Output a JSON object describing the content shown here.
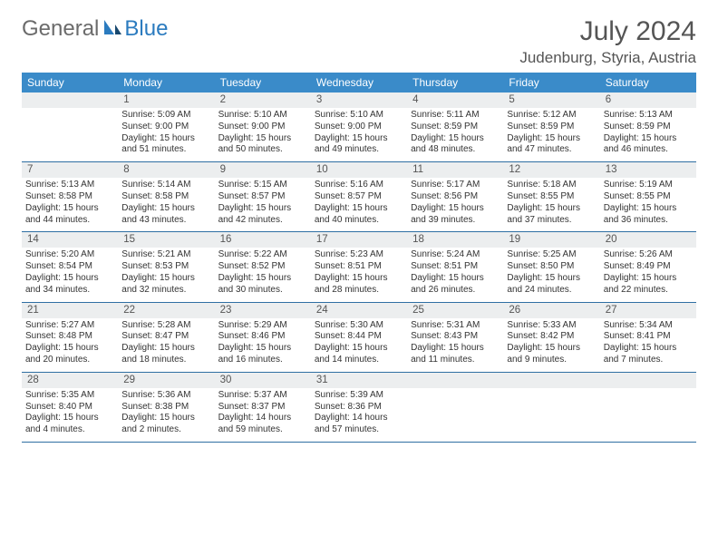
{
  "brand": {
    "part1": "General",
    "part2": "Blue"
  },
  "header": {
    "title": "July 2024",
    "location": "Judenburg, Styria, Austria"
  },
  "colors": {
    "header_bg": "#3a8bc9",
    "header_text": "#ffffff",
    "daynum_bg": "#eceeef",
    "row_border": "#2f6fa3",
    "title_color": "#555555",
    "logo_gray": "#6b6b6b",
    "logo_blue": "#2b7bbf"
  },
  "weekdays": [
    "Sunday",
    "Monday",
    "Tuesday",
    "Wednesday",
    "Thursday",
    "Friday",
    "Saturday"
  ],
  "layout": {
    "first_weekday_index": 1,
    "days_in_month": 31
  },
  "days": {
    "1": {
      "sunrise": "5:09 AM",
      "sunset": "9:00 PM",
      "daylight": "15 hours and 51 minutes."
    },
    "2": {
      "sunrise": "5:10 AM",
      "sunset": "9:00 PM",
      "daylight": "15 hours and 50 minutes."
    },
    "3": {
      "sunrise": "5:10 AM",
      "sunset": "9:00 PM",
      "daylight": "15 hours and 49 minutes."
    },
    "4": {
      "sunrise": "5:11 AM",
      "sunset": "8:59 PM",
      "daylight": "15 hours and 48 minutes."
    },
    "5": {
      "sunrise": "5:12 AM",
      "sunset": "8:59 PM",
      "daylight": "15 hours and 47 minutes."
    },
    "6": {
      "sunrise": "5:13 AM",
      "sunset": "8:59 PM",
      "daylight": "15 hours and 46 minutes."
    },
    "7": {
      "sunrise": "5:13 AM",
      "sunset": "8:58 PM",
      "daylight": "15 hours and 44 minutes."
    },
    "8": {
      "sunrise": "5:14 AM",
      "sunset": "8:58 PM",
      "daylight": "15 hours and 43 minutes."
    },
    "9": {
      "sunrise": "5:15 AM",
      "sunset": "8:57 PM",
      "daylight": "15 hours and 42 minutes."
    },
    "10": {
      "sunrise": "5:16 AM",
      "sunset": "8:57 PM",
      "daylight": "15 hours and 40 minutes."
    },
    "11": {
      "sunrise": "5:17 AM",
      "sunset": "8:56 PM",
      "daylight": "15 hours and 39 minutes."
    },
    "12": {
      "sunrise": "5:18 AM",
      "sunset": "8:55 PM",
      "daylight": "15 hours and 37 minutes."
    },
    "13": {
      "sunrise": "5:19 AM",
      "sunset": "8:55 PM",
      "daylight": "15 hours and 36 minutes."
    },
    "14": {
      "sunrise": "5:20 AM",
      "sunset": "8:54 PM",
      "daylight": "15 hours and 34 minutes."
    },
    "15": {
      "sunrise": "5:21 AM",
      "sunset": "8:53 PM",
      "daylight": "15 hours and 32 minutes."
    },
    "16": {
      "sunrise": "5:22 AM",
      "sunset": "8:52 PM",
      "daylight": "15 hours and 30 minutes."
    },
    "17": {
      "sunrise": "5:23 AM",
      "sunset": "8:51 PM",
      "daylight": "15 hours and 28 minutes."
    },
    "18": {
      "sunrise": "5:24 AM",
      "sunset": "8:51 PM",
      "daylight": "15 hours and 26 minutes."
    },
    "19": {
      "sunrise": "5:25 AM",
      "sunset": "8:50 PM",
      "daylight": "15 hours and 24 minutes."
    },
    "20": {
      "sunrise": "5:26 AM",
      "sunset": "8:49 PM",
      "daylight": "15 hours and 22 minutes."
    },
    "21": {
      "sunrise": "5:27 AM",
      "sunset": "8:48 PM",
      "daylight": "15 hours and 20 minutes."
    },
    "22": {
      "sunrise": "5:28 AM",
      "sunset": "8:47 PM",
      "daylight": "15 hours and 18 minutes."
    },
    "23": {
      "sunrise": "5:29 AM",
      "sunset": "8:46 PM",
      "daylight": "15 hours and 16 minutes."
    },
    "24": {
      "sunrise": "5:30 AM",
      "sunset": "8:44 PM",
      "daylight": "15 hours and 14 minutes."
    },
    "25": {
      "sunrise": "5:31 AM",
      "sunset": "8:43 PM",
      "daylight": "15 hours and 11 minutes."
    },
    "26": {
      "sunrise": "5:33 AM",
      "sunset": "8:42 PM",
      "daylight": "15 hours and 9 minutes."
    },
    "27": {
      "sunrise": "5:34 AM",
      "sunset": "8:41 PM",
      "daylight": "15 hours and 7 minutes."
    },
    "28": {
      "sunrise": "5:35 AM",
      "sunset": "8:40 PM",
      "daylight": "15 hours and 4 minutes."
    },
    "29": {
      "sunrise": "5:36 AM",
      "sunset": "8:38 PM",
      "daylight": "15 hours and 2 minutes."
    },
    "30": {
      "sunrise": "5:37 AM",
      "sunset": "8:37 PM",
      "daylight": "14 hours and 59 minutes."
    },
    "31": {
      "sunrise": "5:39 AM",
      "sunset": "8:36 PM",
      "daylight": "14 hours and 57 minutes."
    }
  },
  "labels": {
    "sunrise": "Sunrise:",
    "sunset": "Sunset:",
    "daylight": "Daylight:"
  }
}
